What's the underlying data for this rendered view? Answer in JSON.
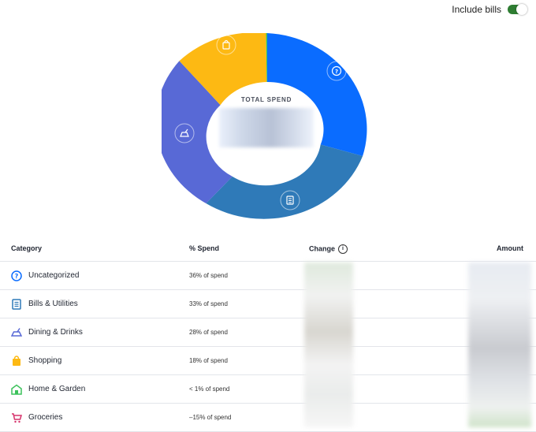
{
  "toggle": {
    "label": "Include bills",
    "on": true,
    "color": "#2e7d32"
  },
  "donut": {
    "center_label": "TOTAL SPEND",
    "segments": [
      {
        "name": "Uncategorized",
        "color": "#0a6cff",
        "value": 36,
        "icon": "question-icon"
      },
      {
        "name": "Bills & Utilities",
        "color": "#2f7ab8",
        "value": 33,
        "icon": "receipt-icon"
      },
      {
        "name": "Dining & Drinks",
        "color": "#5869d6",
        "value": 28,
        "icon": "dining-icon"
      },
      {
        "name": "Shopping",
        "color": "#fdb913",
        "value": 18,
        "icon": "shopping-bag-icon"
      },
      {
        "name": "Home & Garden",
        "color": "#3cc25b",
        "value": 0.5,
        "icon": "home-icon"
      }
    ]
  },
  "table": {
    "headers": {
      "category": "Category",
      "spend": "% Spend",
      "change": "Change",
      "amount": "Amount"
    },
    "rows": [
      {
        "icon": "question-icon",
        "icon_color": "#0a6cff",
        "name": "Uncategorized",
        "pct": "36% of spend"
      },
      {
        "icon": "receipt-icon",
        "icon_color": "#2f7ab8",
        "name": "Bills & Utilities",
        "pct": "33% of spend"
      },
      {
        "icon": "dining-icon",
        "icon_color": "#5869d6",
        "name": "Dining & Drinks",
        "pct": "28% of spend"
      },
      {
        "icon": "shopping-bag-icon",
        "icon_color": "#fdb913",
        "name": "Shopping",
        "pct": "18% of spend"
      },
      {
        "icon": "home-icon",
        "icon_color": "#3cc25b",
        "name": "Home & Garden",
        "pct": "< 1% of spend"
      },
      {
        "icon": "cart-icon",
        "icon_color": "#d6336c",
        "name": "Groceries",
        "pct": "–15% of spend"
      }
    ]
  }
}
